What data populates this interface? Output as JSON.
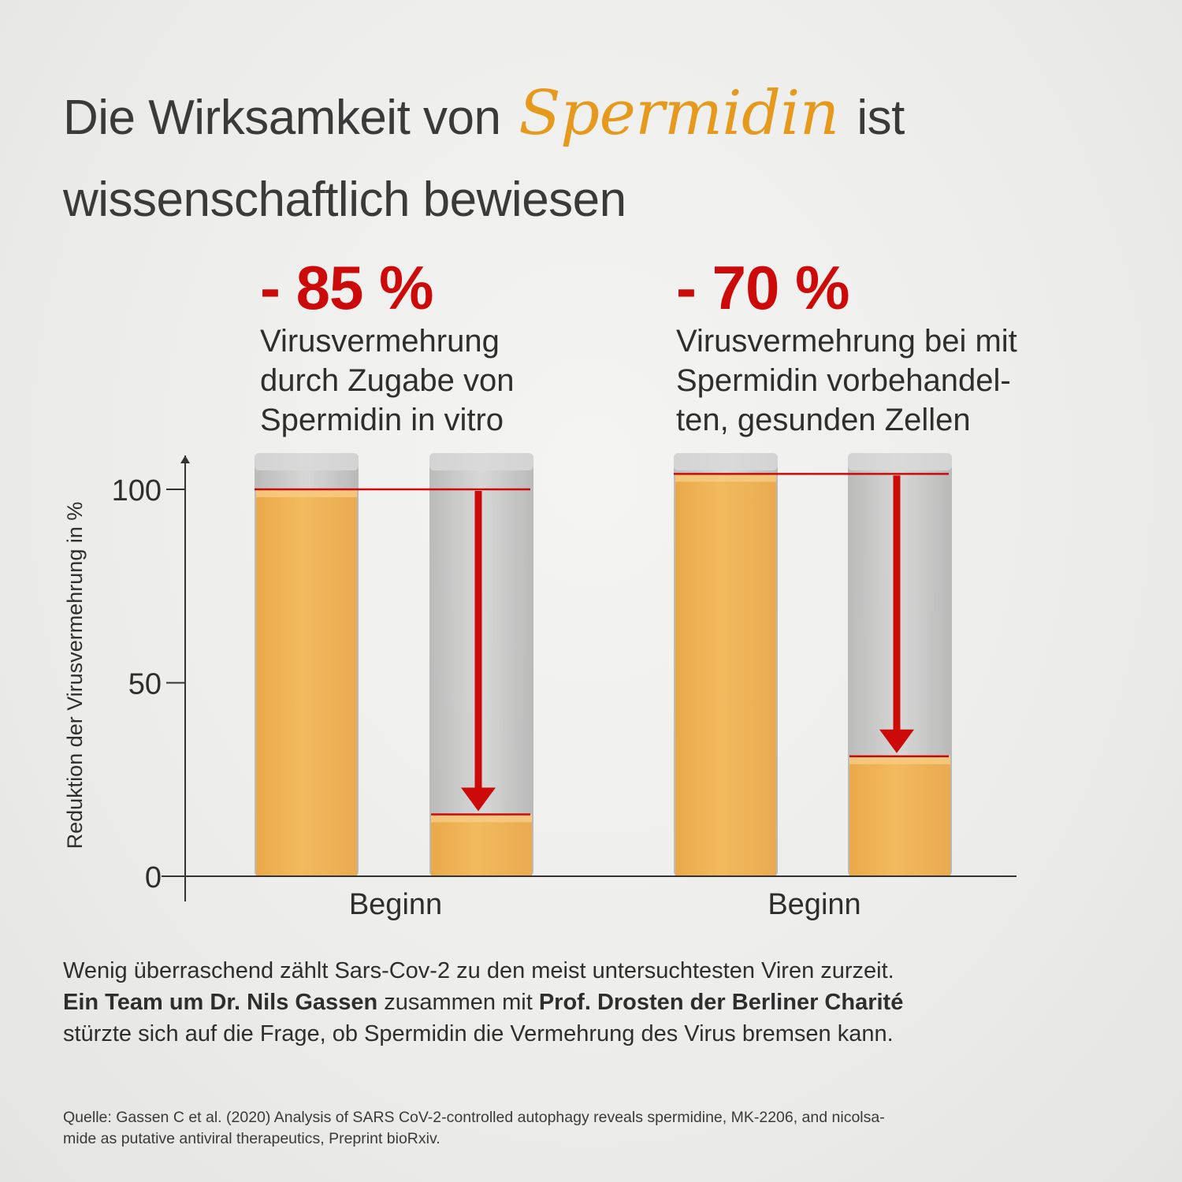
{
  "title": {
    "part1": "Die Wirksamkeit von",
    "accent": "Spermidin",
    "part2": "ist",
    "line2": "wissenschaftlich bewiesen"
  },
  "panels": [
    {
      "headline": "- 85 %",
      "lines": [
        "Virusvermehrung",
        "durch Zugabe von",
        "Spermidin in vitro"
      ]
    },
    {
      "headline": "- 70 %",
      "lines": [
        "Virusvermehrung bei mit",
        "Spermidin vorbehandel-",
        "ten, gesunden Zellen"
      ]
    }
  ],
  "chart_data": {
    "type": "bar",
    "ylabel": "Reduktion der Virusvermehrung in %",
    "yticks": [
      0,
      50,
      100
    ],
    "ylim": [
      0,
      100
    ],
    "groups": [
      {
        "label": "Beginn",
        "values": [
          100,
          16
        ],
        "reduction": "-85 %"
      },
      {
        "label": "Beginn",
        "values": [
          104,
          31
        ],
        "reduction": "-70 %"
      }
    ],
    "colors": {
      "liquid": "#f2ba5e",
      "glass": "#bdbdbd",
      "marker": "#cc0a0a",
      "axis": "#333333"
    }
  },
  "body": {
    "line1": "Wenig überraschend zählt Sars-Cov-2 zu den meist untersuchtesten Viren zurzeit.",
    "bold1": "Ein Team um Dr. Nils Gassen",
    "mid": " zusammen mit ",
    "bold2": "Prof. Drosten der Berliner Charité",
    "line3": "stürzte sich auf die Frage, ob Spermidin die Vermehrung des Virus bremsen kann."
  },
  "source": {
    "line1": "Quelle: Gassen C et al. (2020) Analysis of SARS CoV-2-controlled autophagy reveals spermidine, MK-2206, and nicolsa-",
    "line2": "mide as putative antiviral therapeutics, Preprint bioRxiv."
  }
}
